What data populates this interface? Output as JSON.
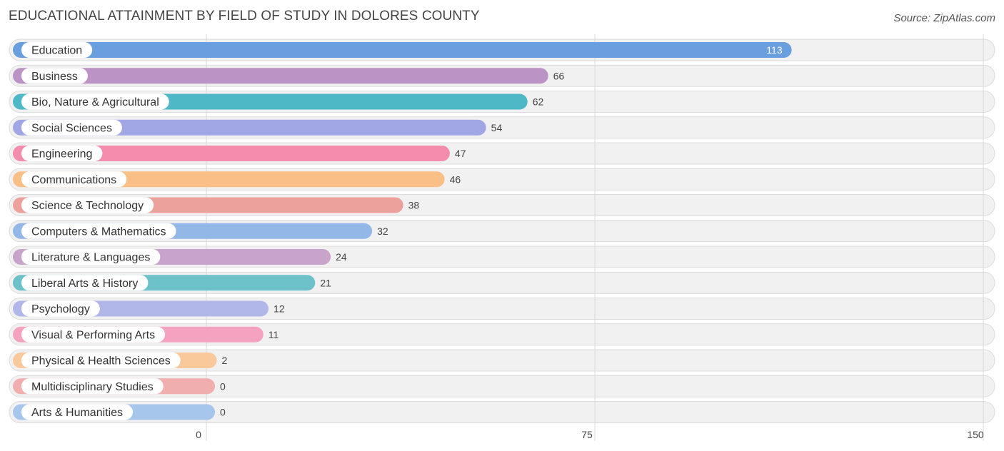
{
  "header": {
    "title": "EDUCATIONAL ATTAINMENT BY FIELD OF STUDY IN DOLORES COUNTY",
    "source": "Source: ZipAtlas.com"
  },
  "chart_data": {
    "type": "bar",
    "orientation": "horizontal",
    "title": "EDUCATIONAL ATTAINMENT BY FIELD OF STUDY IN DOLORES COUNTY",
    "xlabel": "",
    "ylabel": "",
    "xlim": [
      0,
      150
    ],
    "ticks": [
      0,
      75,
      150
    ],
    "grid": true,
    "categories": [
      "Education",
      "Business",
      "Bio, Nature & Agricultural",
      "Social Sciences",
      "Engineering",
      "Communications",
      "Science & Technology",
      "Computers & Mathematics",
      "Literature & Languages",
      "Liberal Arts & History",
      "Psychology",
      "Visual & Performing Arts",
      "Physical & Health Sciences",
      "Multidisciplinary Studies",
      "Arts & Humanities"
    ],
    "values": [
      113,
      66,
      62,
      54,
      47,
      46,
      38,
      32,
      24,
      21,
      12,
      11,
      2,
      0,
      0
    ],
    "colors": [
      "#6a9fdf",
      "#bb93c4",
      "#4fb8c6",
      "#a1a7e4",
      "#f48cae",
      "#f9bf87",
      "#eda19c",
      "#93b8e8",
      "#c9a4ca",
      "#6cc2c8",
      "#b2b7ea",
      "#f4a2bf",
      "#f9c99b",
      "#f0aeae",
      "#a7c6ec"
    ]
  }
}
